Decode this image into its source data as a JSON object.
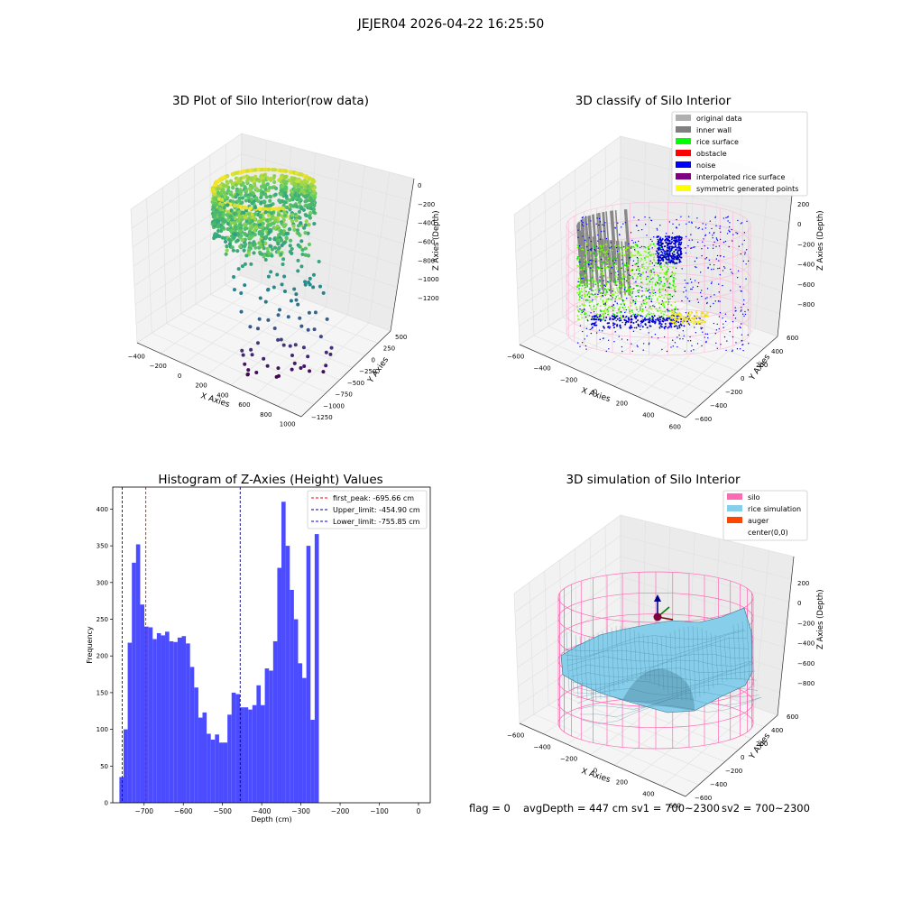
{
  "suptitle": "JEJER04 2026-04-22 16:25:50",
  "footer": {
    "flag": "flag = 0",
    "avg": "avgDepth = 447 cm",
    "sv1": "sv1 = 700~2300",
    "sv2": "sv2 = 700~2300"
  },
  "chart_data": [
    {
      "type": "scatter",
      "title": "3D Plot of Silo Interior(row data)",
      "xlabel": "X Axies",
      "ylabel": "Y Axies",
      "zlabel": "Z Axies (Depth)",
      "x_ticks": [
        "−400",
        "−200",
        "0",
        "200",
        "400",
        "600",
        "800",
        "1000"
      ],
      "y_ticks": [
        "500",
        "250",
        "0",
        "−250",
        "−500",
        "−750",
        "−1000",
        "−1250"
      ],
      "z_ticks": [
        "0",
        "−200",
        "−400",
        "−600",
        "−800",
        "−1000",
        "−1200"
      ],
      "grid": true
    },
    {
      "type": "scatter",
      "title": "3D classify of Silo Interior",
      "xlabel": "X Axies",
      "ylabel": "Y Axies",
      "zlabel": "Z Axies (Depth)",
      "x_ticks": [
        "−600",
        "−400",
        "−200",
        "0",
        "200",
        "400",
        "600"
      ],
      "y_ticks": [
        "600",
        "400",
        "200",
        "0",
        "−200",
        "−400",
        "−600"
      ],
      "z_ticks": [
        "200",
        "0",
        "−200",
        "−400",
        "−600",
        "−800"
      ],
      "legend": [
        {
          "label": "original data",
          "color": "#b0b0b0"
        },
        {
          "label": "inner wall",
          "color": "#808080"
        },
        {
          "label": "rice surface",
          "color": "#00ff00"
        },
        {
          "label": "obstacle",
          "color": "#ff0000"
        },
        {
          "label": "noise",
          "color": "#0000ff"
        },
        {
          "label": "interpolated rice surface",
          "color": "#800080"
        },
        {
          "label": "symmetric generated points",
          "color": "#ffff00"
        }
      ],
      "legend_loc": "upper right",
      "grid": true
    },
    {
      "type": "bar",
      "title": "Histogram of Z-Axies (Height) Values",
      "xlabel": "Depth (cm)",
      "ylabel": "Frequency",
      "bin_edges_start": -763,
      "bin_width": 10.6,
      "values": [
        35,
        100,
        218,
        327,
        352,
        270,
        240,
        239,
        223,
        231,
        228,
        233,
        220,
        219,
        225,
        227,
        217,
        185,
        157,
        116,
        123,
        94,
        86,
        93,
        82,
        82,
        120,
        150,
        148,
        130,
        130,
        127,
        133,
        160,
        133,
        183,
        180,
        220,
        320,
        410,
        350,
        290,
        250,
        190,
        170,
        350,
        113,
        366
      ],
      "xlim": [
        -780,
        30
      ],
      "ylim": [
        0,
        430
      ],
      "x_ticks": [
        -700,
        -600,
        -500,
        -400,
        -300,
        -200,
        -100,
        0
      ],
      "y_ticks": [
        0,
        50,
        100,
        150,
        200,
        250,
        300,
        350,
        400
      ],
      "vlines": [
        {
          "label": "first_peak: -695.66 cm",
          "x": -695.66,
          "color": "#ff0000"
        },
        {
          "label": "Upper_limit: -454.90 cm",
          "x": -454.9,
          "color": "#00008b"
        },
        {
          "label": "Lower_limit: -755.85 cm",
          "x": -755.85,
          "color": "#0000ff"
        }
      ],
      "bar_color": "#4b4bff",
      "legend_loc": "upper right"
    },
    {
      "type": "surface",
      "title": "3D simulation of Silo Interior",
      "xlabel": "X Axies",
      "ylabel": "Y Axies",
      "zlabel": "Z Axies (Depth)",
      "x_ticks": [
        "−600",
        "−400",
        "−200",
        "0",
        "200",
        "400",
        "600"
      ],
      "y_ticks": [
        "600",
        "400",
        "200",
        "0",
        "−200",
        "−400",
        "−600"
      ],
      "z_ticks": [
        "200",
        "0",
        "−200",
        "−400",
        "−600",
        "−800"
      ],
      "legend": [
        {
          "label": "silo",
          "color": "#ff69b4"
        },
        {
          "label": "rice simulation",
          "color": "#87ceeb"
        },
        {
          "label": "auger",
          "color": "#ff4500"
        },
        {
          "label": "center(0,0)",
          "color": ""
        }
      ],
      "legend_loc": "upper right",
      "grid": true
    }
  ]
}
